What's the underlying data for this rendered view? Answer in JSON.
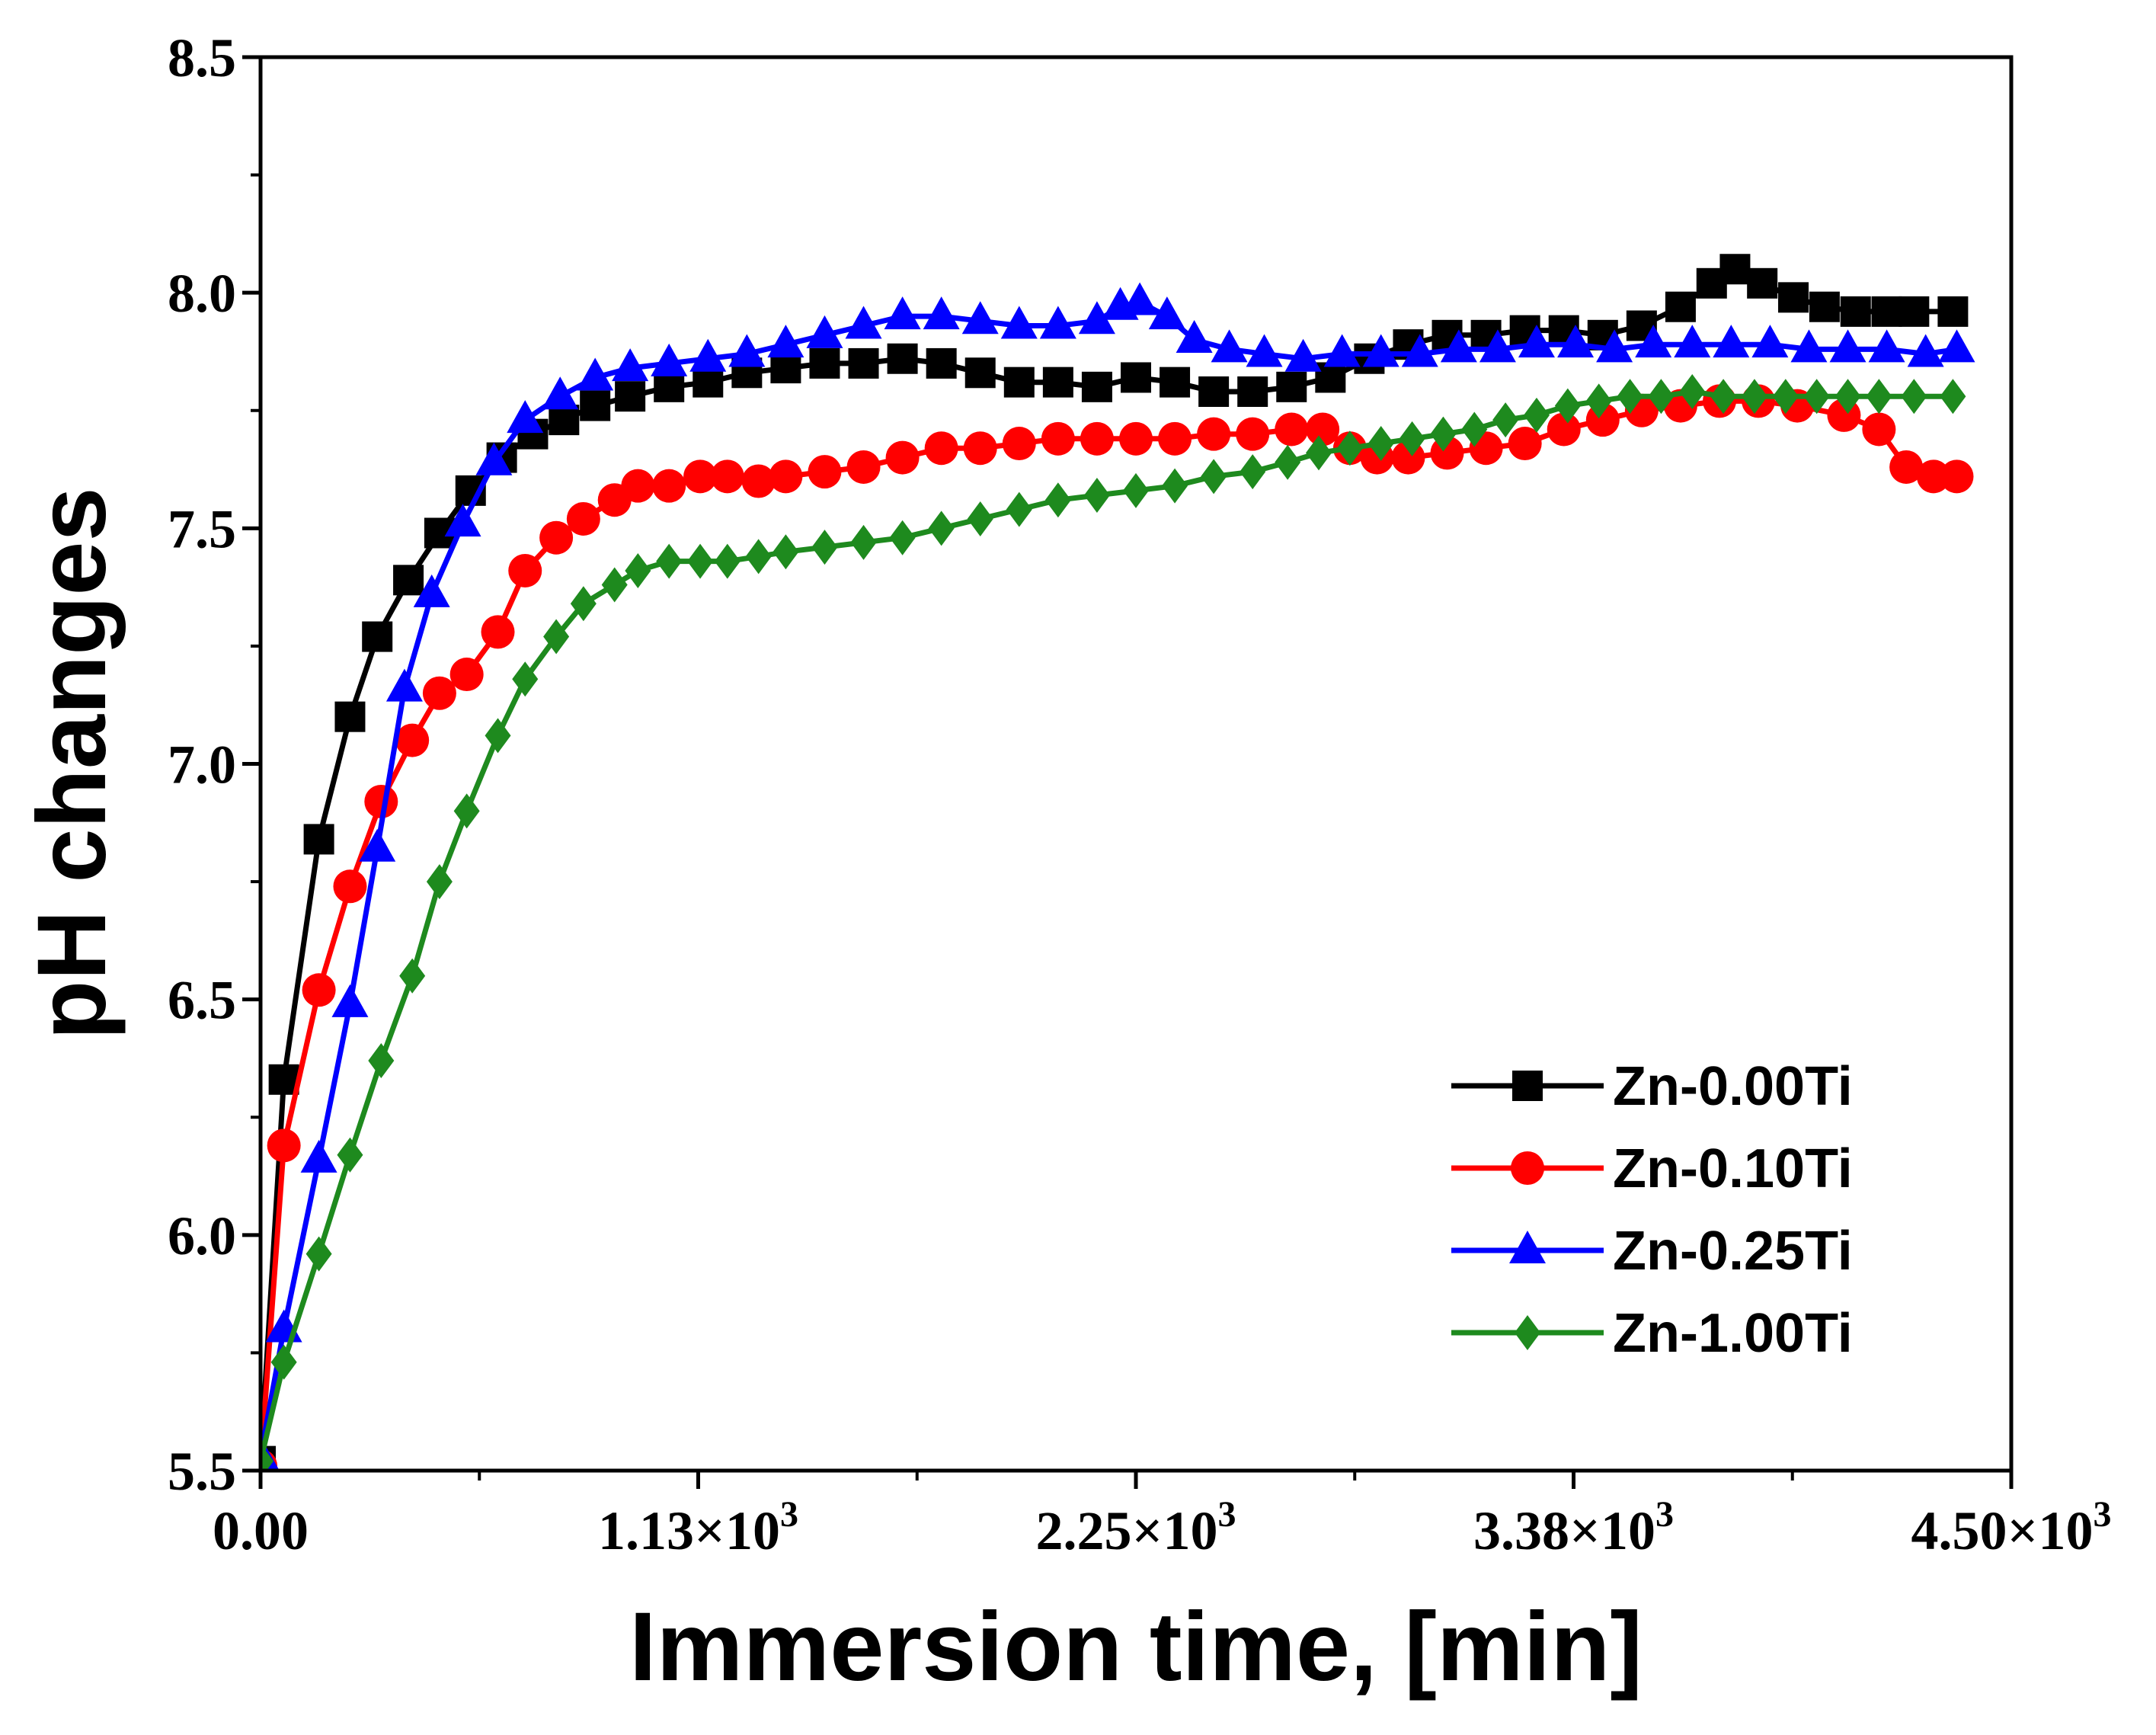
{
  "chart_data": {
    "type": "line",
    "xlabel": "Immersion time, [min]",
    "ylabel": "pH changes",
    "xlim": [
      0,
      4500
    ],
    "ylim": [
      5.5,
      8.5
    ],
    "x_ticks": [
      {
        "value": 0,
        "label": "0.00"
      },
      {
        "value": 1125,
        "label": "1.13×10",
        "exp": "3"
      },
      {
        "value": 2250,
        "label": "2.25×10",
        "exp": "3"
      },
      {
        "value": 3375,
        "label": "3.38×10",
        "exp": "3"
      },
      {
        "value": 4500,
        "label": "4.50×10",
        "exp": "3"
      }
    ],
    "y_ticks": [
      {
        "value": 5.5,
        "label": "5.5"
      },
      {
        "value": 6.0,
        "label": "6.0"
      },
      {
        "value": 6.5,
        "label": "6.5"
      },
      {
        "value": 7.0,
        "label": "7.0"
      },
      {
        "value": 7.5,
        "label": "7.5"
      },
      {
        "value": 8.0,
        "label": "8.0"
      },
      {
        "value": 8.5,
        "label": "8.5"
      }
    ],
    "legend_position": "bottom-right",
    "series": [
      {
        "name": "Zn-0.00Ti",
        "color": "#000000",
        "marker": "square",
        "points": [
          [
            0,
            5.52
          ],
          [
            60,
            6.33
          ],
          [
            150,
            6.84
          ],
          [
            230,
            7.1
          ],
          [
            300,
            7.27
          ],
          [
            380,
            7.39
          ],
          [
            460,
            7.49
          ],
          [
            540,
            7.58
          ],
          [
            620,
            7.65
          ],
          [
            700,
            7.7
          ],
          [
            780,
            7.73
          ],
          [
            860,
            7.76
          ],
          [
            950,
            7.78
          ],
          [
            1050,
            7.8
          ],
          [
            1150,
            7.81
          ],
          [
            1250,
            7.83
          ],
          [
            1350,
            7.84
          ],
          [
            1450,
            7.85
          ],
          [
            1550,
            7.85
          ],
          [
            1650,
            7.86
          ],
          [
            1750,
            7.85
          ],
          [
            1850,
            7.83
          ],
          [
            1950,
            7.81
          ],
          [
            2050,
            7.81
          ],
          [
            2150,
            7.8
          ],
          [
            2250,
            7.82
          ],
          [
            2350,
            7.81
          ],
          [
            2450,
            7.79
          ],
          [
            2550,
            7.79
          ],
          [
            2650,
            7.8
          ],
          [
            2750,
            7.82
          ],
          [
            2850,
            7.86
          ],
          [
            2950,
            7.89
          ],
          [
            3050,
            7.91
          ],
          [
            3150,
            7.91
          ],
          [
            3250,
            7.92
          ],
          [
            3350,
            7.92
          ],
          [
            3450,
            7.91
          ],
          [
            3550,
            7.93
          ],
          [
            3650,
            7.97
          ],
          [
            3730,
            8.02
          ],
          [
            3790,
            8.05
          ],
          [
            3860,
            8.02
          ],
          [
            3940,
            7.99
          ],
          [
            4020,
            7.97
          ],
          [
            4100,
            7.96
          ],
          [
            4180,
            7.96
          ],
          [
            4250,
            7.96
          ],
          [
            4350,
            7.96
          ]
        ]
      },
      {
        "name": "Zn-0.10Ti",
        "color": "#ff0000",
        "marker": "circle",
        "points": [
          [
            0,
            5.51
          ],
          [
            60,
            6.19
          ],
          [
            150,
            6.52
          ],
          [
            230,
            6.74
          ],
          [
            310,
            6.92
          ],
          [
            390,
            7.05
          ],
          [
            460,
            7.15
          ],
          [
            530,
            7.19
          ],
          [
            610,
            7.28
          ],
          [
            680,
            7.41
          ],
          [
            760,
            7.48
          ],
          [
            830,
            7.52
          ],
          [
            910,
            7.56
          ],
          [
            970,
            7.59
          ],
          [
            1050,
            7.59
          ],
          [
            1130,
            7.61
          ],
          [
            1200,
            7.61
          ],
          [
            1280,
            7.6
          ],
          [
            1350,
            7.61
          ],
          [
            1450,
            7.62
          ],
          [
            1550,
            7.63
          ],
          [
            1650,
            7.65
          ],
          [
            1750,
            7.67
          ],
          [
            1850,
            7.67
          ],
          [
            1950,
            7.68
          ],
          [
            2050,
            7.69
          ],
          [
            2150,
            7.69
          ],
          [
            2250,
            7.69
          ],
          [
            2350,
            7.69
          ],
          [
            2450,
            7.7
          ],
          [
            2550,
            7.7
          ],
          [
            2650,
            7.71
          ],
          [
            2730,
            7.71
          ],
          [
            2800,
            7.67
          ],
          [
            2870,
            7.65
          ],
          [
            2950,
            7.65
          ],
          [
            3050,
            7.66
          ],
          [
            3150,
            7.67
          ],
          [
            3250,
            7.68
          ],
          [
            3350,
            7.71
          ],
          [
            3450,
            7.73
          ],
          [
            3550,
            7.75
          ],
          [
            3650,
            7.76
          ],
          [
            3750,
            7.77
          ],
          [
            3850,
            7.77
          ],
          [
            3950,
            7.76
          ],
          [
            4070,
            7.74
          ],
          [
            4160,
            7.71
          ],
          [
            4230,
            7.63
          ],
          [
            4300,
            7.61
          ],
          [
            4360,
            7.61
          ]
        ]
      },
      {
        "name": "Zn-0.25Ti",
        "color": "#0000ff",
        "marker": "triangle",
        "points": [
          [
            0,
            5.53
          ],
          [
            60,
            5.8
          ],
          [
            150,
            6.16
          ],
          [
            230,
            6.49
          ],
          [
            300,
            6.82
          ],
          [
            370,
            7.16
          ],
          [
            440,
            7.36
          ],
          [
            520,
            7.51
          ],
          [
            600,
            7.64
          ],
          [
            680,
            7.73
          ],
          [
            770,
            7.78
          ],
          [
            860,
            7.82
          ],
          [
            950,
            7.84
          ],
          [
            1050,
            7.85
          ],
          [
            1150,
            7.86
          ],
          [
            1250,
            7.87
          ],
          [
            1350,
            7.89
          ],
          [
            1450,
            7.91
          ],
          [
            1550,
            7.93
          ],
          [
            1650,
            7.95
          ],
          [
            1750,
            7.95
          ],
          [
            1850,
            7.94
          ],
          [
            1950,
            7.93
          ],
          [
            2050,
            7.93
          ],
          [
            2150,
            7.94
          ],
          [
            2210,
            7.97
          ],
          [
            2260,
            7.98
          ],
          [
            2330,
            7.95
          ],
          [
            2400,
            7.9
          ],
          [
            2490,
            7.88
          ],
          [
            2580,
            7.87
          ],
          [
            2680,
            7.86
          ],
          [
            2780,
            7.87
          ],
          [
            2880,
            7.87
          ],
          [
            2980,
            7.87
          ],
          [
            3080,
            7.88
          ],
          [
            3180,
            7.88
          ],
          [
            3280,
            7.89
          ],
          [
            3380,
            7.89
          ],
          [
            3480,
            7.88
          ],
          [
            3580,
            7.89
          ],
          [
            3680,
            7.89
          ],
          [
            3780,
            7.89
          ],
          [
            3880,
            7.89
          ],
          [
            3980,
            7.88
          ],
          [
            4080,
            7.88
          ],
          [
            4180,
            7.88
          ],
          [
            4280,
            7.87
          ],
          [
            4360,
            7.88
          ]
        ]
      },
      {
        "name": "Zn-1.00Ti",
        "color": "#1e8a1e",
        "marker": "diamond",
        "points": [
          [
            0,
            5.52
          ],
          [
            60,
            5.73
          ],
          [
            150,
            5.96
          ],
          [
            230,
            6.17
          ],
          [
            310,
            6.37
          ],
          [
            390,
            6.55
          ],
          [
            460,
            6.75
          ],
          [
            530,
            6.9
          ],
          [
            610,
            7.06
          ],
          [
            680,
            7.18
          ],
          [
            760,
            7.27
          ],
          [
            830,
            7.34
          ],
          [
            910,
            7.38
          ],
          [
            970,
            7.41
          ],
          [
            1050,
            7.43
          ],
          [
            1130,
            7.43
          ],
          [
            1200,
            7.43
          ],
          [
            1280,
            7.44
          ],
          [
            1350,
            7.45
          ],
          [
            1450,
            7.46
          ],
          [
            1550,
            7.47
          ],
          [
            1650,
            7.48
          ],
          [
            1750,
            7.5
          ],
          [
            1850,
            7.52
          ],
          [
            1950,
            7.54
          ],
          [
            2050,
            7.56
          ],
          [
            2150,
            7.57
          ],
          [
            2250,
            7.58
          ],
          [
            2350,
            7.59
          ],
          [
            2450,
            7.61
          ],
          [
            2550,
            7.62
          ],
          [
            2640,
            7.64
          ],
          [
            2720,
            7.66
          ],
          [
            2800,
            7.67
          ],
          [
            2880,
            7.68
          ],
          [
            2960,
            7.69
          ],
          [
            3040,
            7.7
          ],
          [
            3120,
            7.71
          ],
          [
            3200,
            7.73
          ],
          [
            3280,
            7.74
          ],
          [
            3360,
            7.76
          ],
          [
            3440,
            7.77
          ],
          [
            3520,
            7.78
          ],
          [
            3600,
            7.78
          ],
          [
            3680,
            7.79
          ],
          [
            3760,
            7.78
          ],
          [
            3840,
            7.78
          ],
          [
            3920,
            7.78
          ],
          [
            4000,
            7.78
          ],
          [
            4080,
            7.78
          ],
          [
            4160,
            7.78
          ],
          [
            4250,
            7.78
          ],
          [
            4350,
            7.78
          ]
        ]
      }
    ]
  }
}
